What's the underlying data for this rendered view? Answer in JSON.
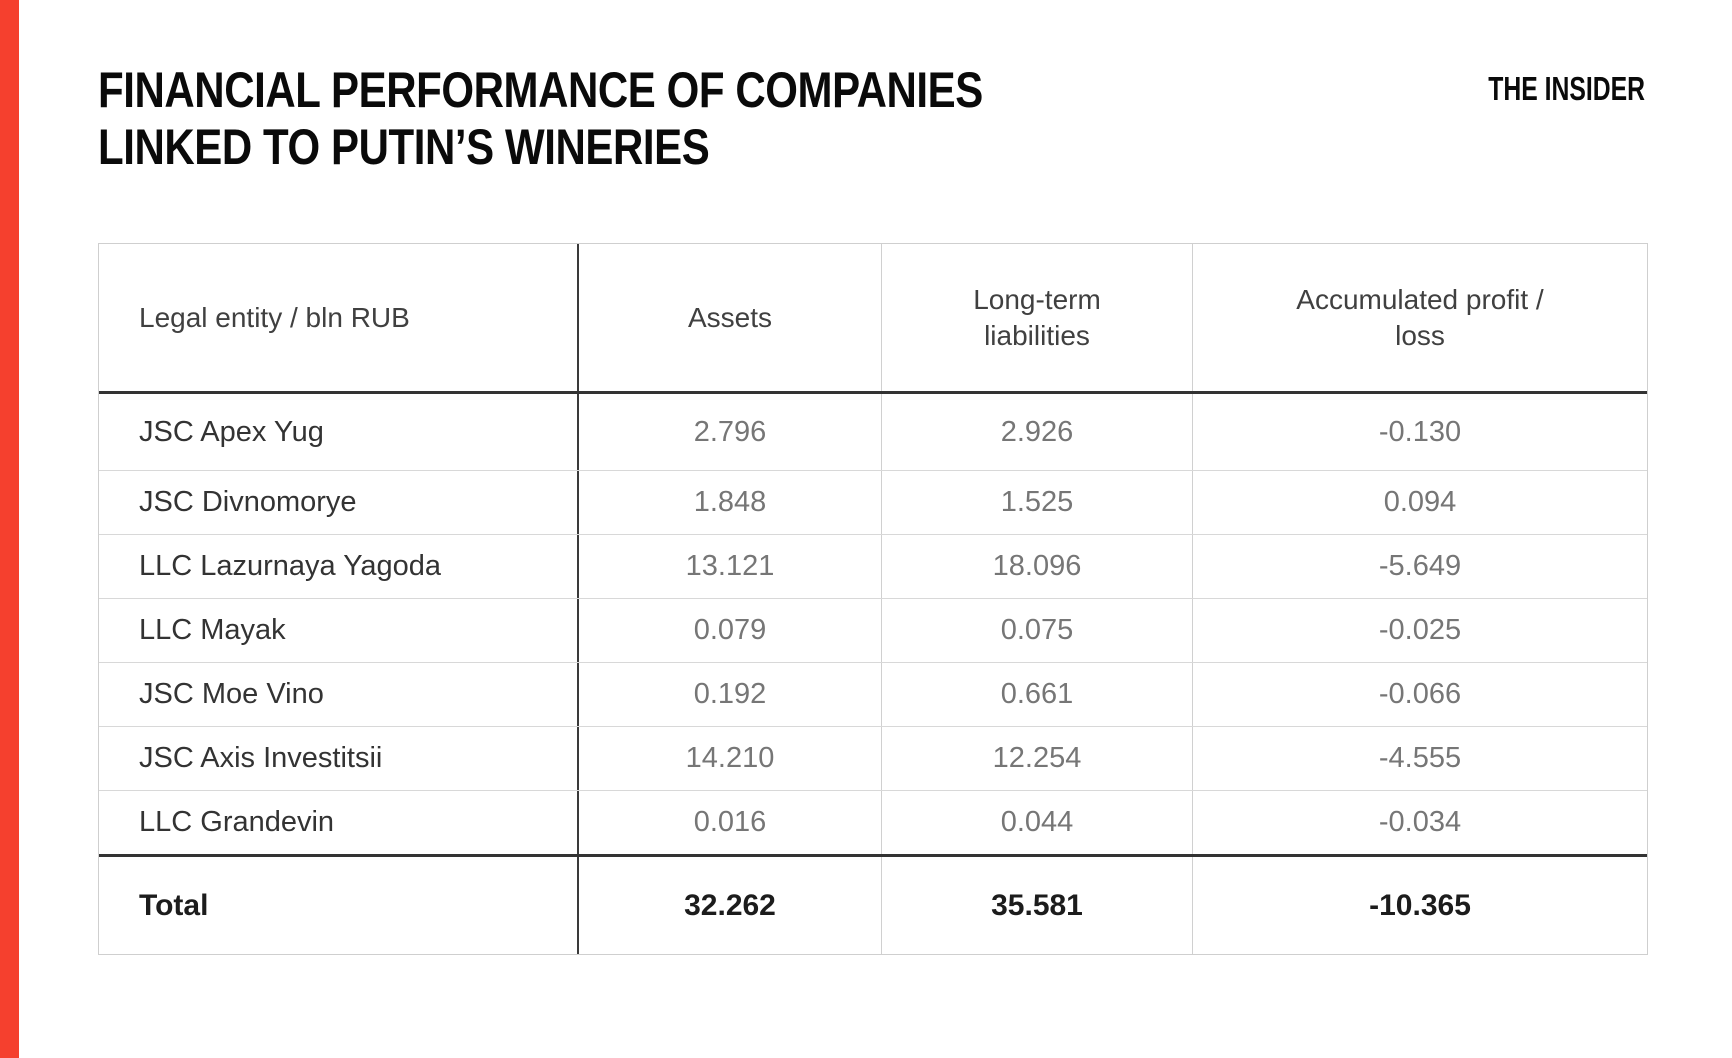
{
  "accent_color": "#f5402e",
  "header": {
    "title_line1": "FINANCIAL PERFORMANCE OF COMPANIES",
    "title_line2": "LINKED TO PUTIN’S WINERIES",
    "logo": "THE INSIDER"
  },
  "table": {
    "col_headers": [
      {
        "lines": [
          "Legal entity / bln RUB"
        ]
      },
      {
        "lines": [
          "Assets"
        ]
      },
      {
        "lines": [
          "Long-term",
          "liabilities"
        ]
      },
      {
        "lines": [
          "Accumulated profit /",
          "loss"
        ]
      }
    ],
    "rows": [
      {
        "entity": "JSC Apex Yug",
        "assets": "2.796",
        "liabilities": "2.926",
        "profit": "-0.130"
      },
      {
        "entity": "JSC Divnomorye",
        "assets": "1.848",
        "liabilities": "1.525",
        "profit": "0.094"
      },
      {
        "entity": "LLC Lazurnaya Yagoda",
        "assets": "13.121",
        "liabilities": "18.096",
        "profit": "-5.649"
      },
      {
        "entity": "LLC Mayak",
        "assets": "0.079",
        "liabilities": "0.075",
        "profit": "-0.025"
      },
      {
        "entity": "JSC Moe Vino",
        "assets": "0.192",
        "liabilities": "0.661",
        "profit": "-0.066"
      },
      {
        "entity": "JSC Axis Investitsii",
        "assets": "14.210",
        "liabilities": "12.254",
        "profit": "-4.555"
      },
      {
        "entity": "LLC Grandevin",
        "assets": "0.016",
        "liabilities": "0.044",
        "profit": "-0.034"
      }
    ],
    "total": {
      "entity": "Total",
      "assets": "32.262",
      "liabilities": "35.581",
      "profit": "-10.365"
    }
  },
  "chart_data": {
    "type": "table",
    "title": "Financial performance of companies linked to Putin's wineries",
    "unit": "bln RUB",
    "columns": [
      "Legal entity / bln RUB",
      "Assets",
      "Long-term liabilities",
      "Accumulated profit / loss"
    ],
    "rows": [
      [
        "JSC Apex Yug",
        2.796,
        2.926,
        -0.13
      ],
      [
        "JSC Divnomorye",
        1.848,
        1.525,
        0.094
      ],
      [
        "LLC Lazurnaya Yagoda",
        13.121,
        18.096,
        -5.649
      ],
      [
        "LLC Mayak",
        0.079,
        0.075,
        -0.025
      ],
      [
        "JSC Moe Vino",
        0.192,
        0.661,
        -0.066
      ],
      [
        "JSC Axis Investitsii",
        14.21,
        12.254,
        -4.555
      ],
      [
        "LLC Grandevin",
        0.016,
        0.044,
        -0.034
      ]
    ],
    "total_row": [
      "Total",
      32.262,
      35.581,
      -10.365
    ]
  }
}
